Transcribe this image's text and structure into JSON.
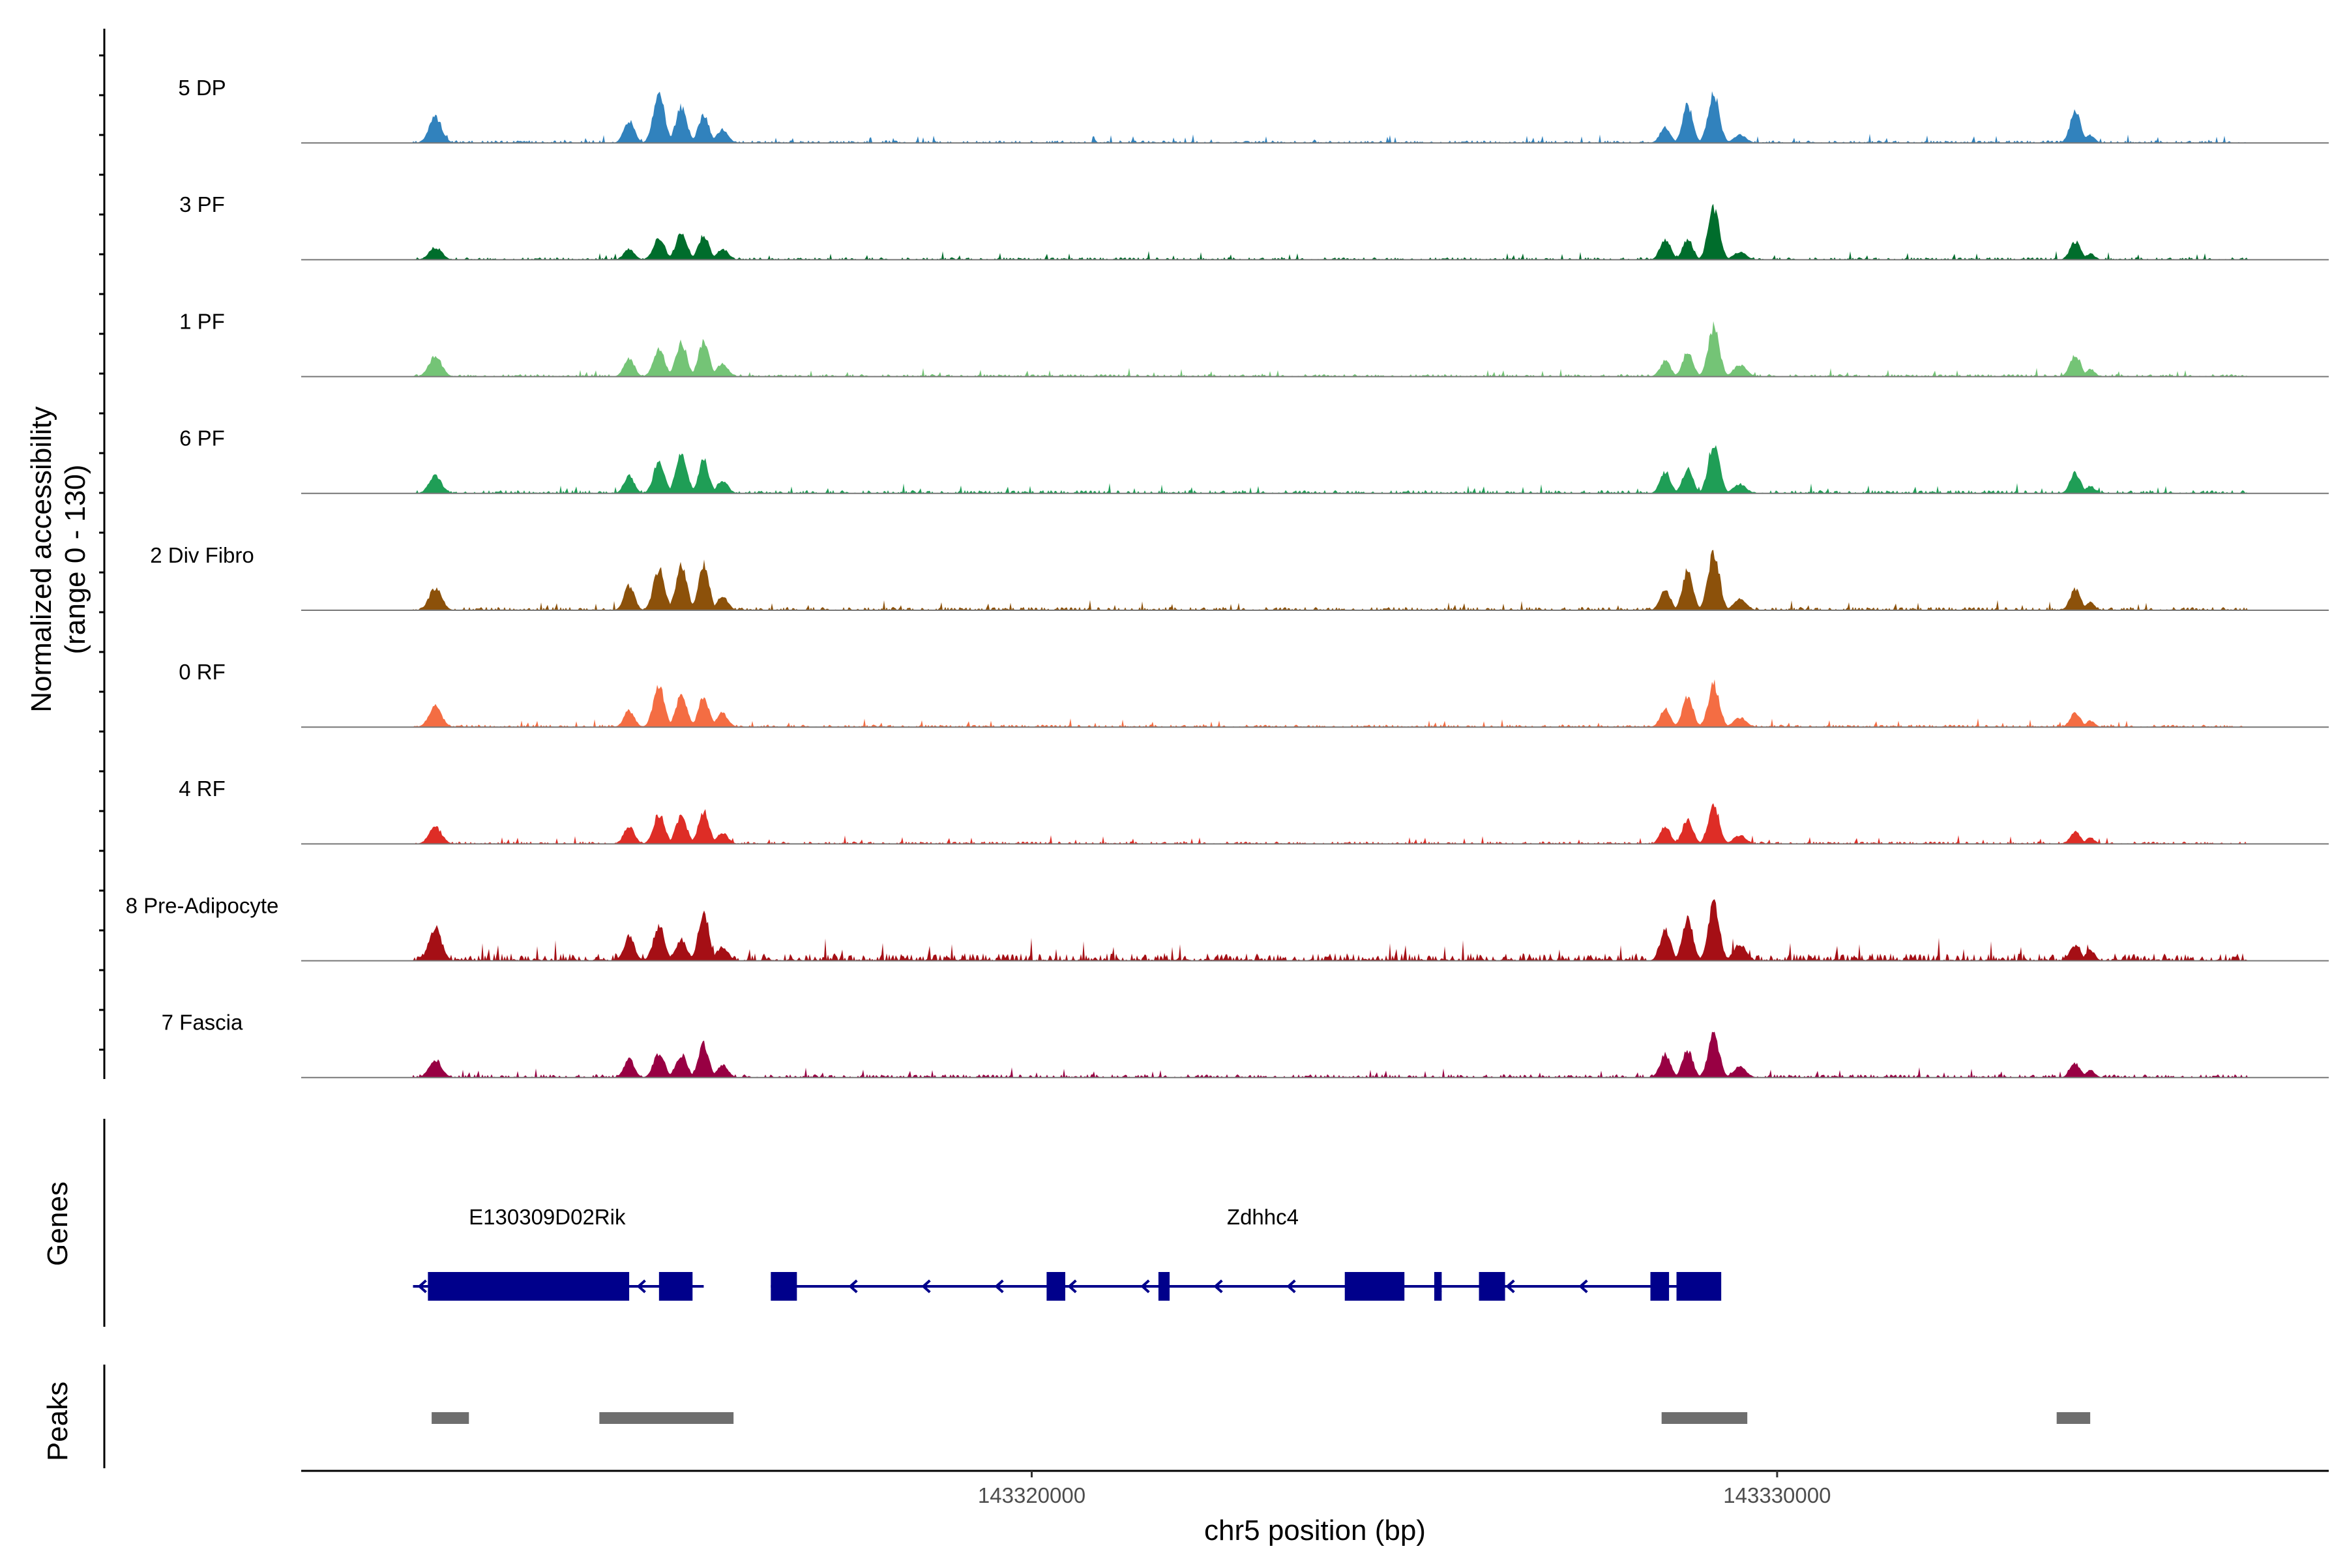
{
  "chart_data": {
    "type": "area",
    "title": "",
    "xlabel": "chr5 position (bp)",
    "ylabel": "Normalized accessibility",
    "ylabel_range": "(range 0 - 130)",
    "y_range": [
      0,
      130
    ],
    "x_range": [
      143310200,
      143337400
    ],
    "x_ticks": [
      {
        "value": 143320000,
        "label": "143320000"
      },
      {
        "value": 143330000,
        "label": "143330000"
      }
    ],
    "peak_shape": [
      {
        "pos": 143312000,
        "w": 85
      },
      {
        "pos": 143314600,
        "w": 70
      },
      {
        "pos": 143315000,
        "w": 75
      },
      {
        "pos": 143315300,
        "w": 75
      },
      {
        "pos": 143315600,
        "w": 70
      },
      {
        "pos": 143315850,
        "w": 75
      },
      {
        "pos": 143328500,
        "w": 70
      },
      {
        "pos": 143328800,
        "w": 70
      },
      {
        "pos": 143329150,
        "w": 75
      },
      {
        "pos": 143329500,
        "w": 85
      },
      {
        "pos": 143334000,
        "w": 70
      },
      {
        "pos": 143334200,
        "w": 60
      }
    ],
    "series": [
      {
        "name": "5 DP",
        "color": "#3182bd",
        "values": [
          33,
          28,
          62,
          45,
          36,
          17,
          20,
          48,
          62,
          10,
          40,
          10
        ],
        "noise": [
          3,
          9
        ]
      },
      {
        "name": "3 PF",
        "color": "#006d2c",
        "values": [
          16,
          14,
          29,
          34,
          31,
          14,
          27,
          26,
          67,
          10,
          23,
          8
        ],
        "noise": [
          3,
          8
        ]
      },
      {
        "name": "1 PF",
        "color": "#74c476",
        "values": [
          26,
          23,
          36,
          42,
          45,
          16,
          20,
          32,
          63,
          15,
          28,
          10
        ],
        "noise": [
          3,
          8
        ]
      },
      {
        "name": "6 PF",
        "color": "#1f9e56",
        "values": [
          22,
          23,
          40,
          52,
          42,
          16,
          28,
          31,
          63,
          12,
          26,
          10
        ],
        "noise": [
          4,
          9
        ]
      },
      {
        "name": "2 Div Fibro",
        "color": "#8c510a",
        "values": [
          28,
          31,
          52,
          55,
          58,
          17,
          27,
          51,
          75,
          14,
          27,
          10
        ],
        "noise": [
          4,
          9
        ]
      },
      {
        "name": "0 RF",
        "color": "#f46d43",
        "values": [
          26,
          21,
          52,
          41,
          39,
          18,
          23,
          39,
          54,
          12,
          18,
          8
        ],
        "noise": [
          3,
          8
        ]
      },
      {
        "name": "4 RF",
        "color": "#de2d26",
        "values": [
          22,
          23,
          38,
          35,
          42,
          14,
          22,
          32,
          49,
          11,
          15,
          8
        ],
        "noise": [
          3,
          8
        ]
      },
      {
        "name": "8 Pre-Adipocyte",
        "color": "#a50f15",
        "values": [
          41,
          31,
          45,
          27,
          62,
          18,
          39,
          55,
          71,
          21,
          20,
          14
        ],
        "noise": [
          9,
          20
        ]
      },
      {
        "name": "7 Fascia",
        "color": "#980043",
        "values": [
          23,
          23,
          31,
          29,
          42,
          16,
          30,
          35,
          54,
          14,
          18,
          10
        ],
        "noise": [
          4,
          9
        ]
      }
    ],
    "genes_label": "Genes",
    "genes": [
      {
        "name": "E130309D02Rik",
        "strand": "-",
        "start": 143311700,
        "end": 143315600,
        "exons": [
          [
            143311900,
            143314600
          ],
          [
            143315000,
            143315450
          ]
        ]
      },
      {
        "name": "Zdhhc4",
        "strand": "-",
        "start": 143316500,
        "end": 143329200,
        "exons": [
          [
            143316500,
            143316850
          ],
          [
            143320200,
            143320450
          ],
          [
            143321700,
            143321850
          ],
          [
            143324200,
            143325000
          ],
          [
            143325400,
            143325500
          ],
          [
            143326000,
            143326350
          ],
          [
            143328300,
            143328550
          ],
          [
            143328650,
            143329250
          ]
        ]
      }
    ],
    "peaks_label": "Peaks",
    "peaks": [
      [
        143311950,
        143312450
      ],
      [
        143314200,
        143316000
      ],
      [
        143328450,
        143329600
      ],
      [
        143333750,
        143334200
      ]
    ]
  }
}
